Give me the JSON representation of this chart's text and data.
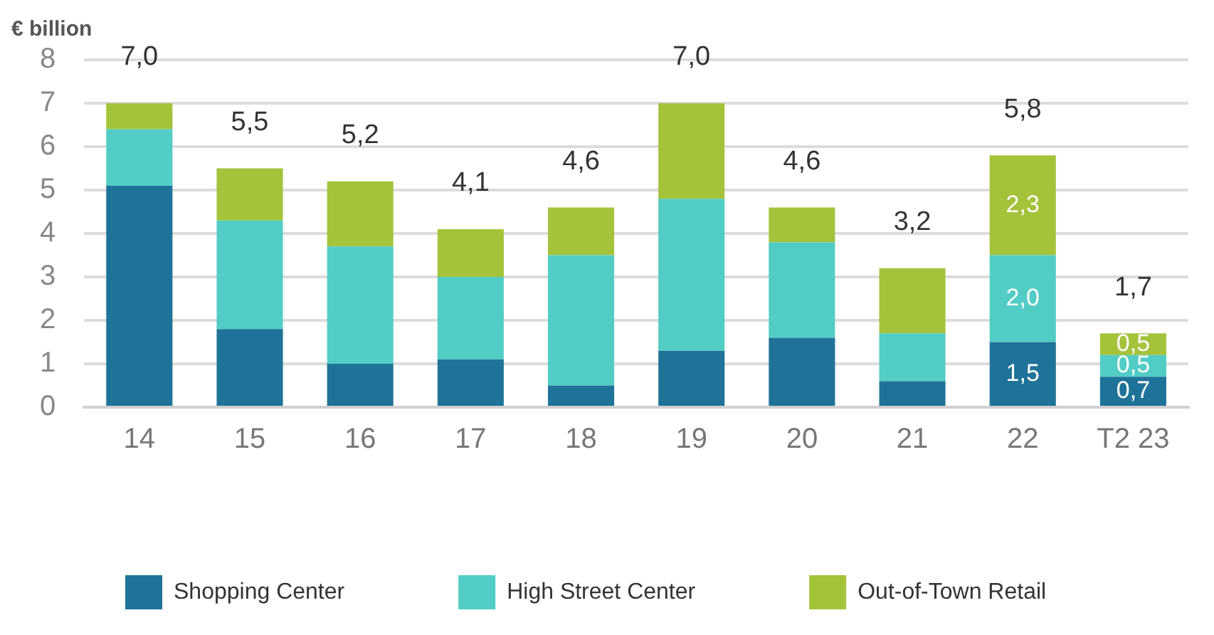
{
  "chart_data": {
    "type": "bar",
    "stacked": true,
    "ylabel": "€ billion",
    "categories": [
      "14",
      "15",
      "16",
      "17",
      "18",
      "19",
      "20",
      "21",
      "22",
      "T2 23"
    ],
    "series": [
      {
        "name": "Shopping Center",
        "color": "#1f7398",
        "values": [
          5.1,
          1.8,
          1.0,
          1.1,
          0.5,
          1.3,
          1.6,
          0.6,
          1.5,
          0.7
        ],
        "value_labels": [
          null,
          null,
          null,
          null,
          null,
          null,
          null,
          null,
          "1,5",
          "0,7"
        ]
      },
      {
        "name": "High Street Center",
        "color": "#52cdc5",
        "values": [
          1.3,
          2.5,
          2.7,
          1.9,
          3.0,
          3.5,
          2.2,
          1.1,
          2.0,
          0.5
        ],
        "value_labels": [
          null,
          null,
          null,
          null,
          null,
          null,
          null,
          null,
          "2,0",
          "0,5"
        ]
      },
      {
        "name": "Out-of-Town Retail",
        "color": "#a4c33a",
        "values": [
          0.6,
          1.2,
          1.5,
          1.1,
          1.1,
          2.2,
          0.8,
          1.5,
          2.3,
          0.5
        ],
        "value_labels": [
          null,
          null,
          null,
          null,
          null,
          null,
          null,
          null,
          "2,3",
          "0,5"
        ]
      }
    ],
    "totals": [
      "7,0",
      "5,5",
      "5,2",
      "4,1",
      "4,6",
      "7,0",
      "4,6",
      "3,2",
      "5,8",
      "1,7"
    ],
    "ylim": [
      0,
      8
    ],
    "yticks": [
      0,
      1,
      2,
      3,
      4,
      5,
      6,
      7,
      8
    ],
    "grid": "y",
    "legend": "bottom"
  }
}
